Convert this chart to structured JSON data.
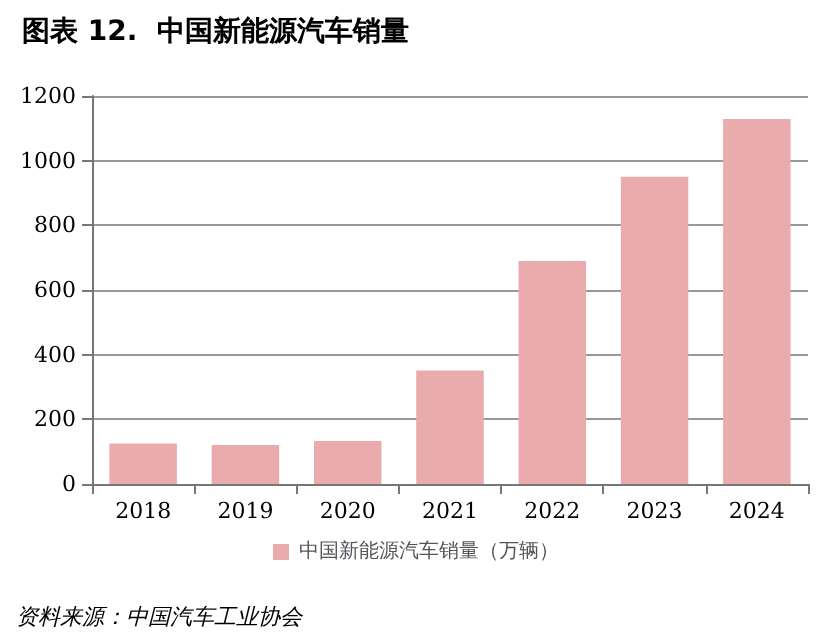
{
  "chart_data": {
    "type": "bar",
    "title": "图表 12.  中国新能源汽车销量",
    "categories": [
      "2018",
      "2019",
      "2020",
      "2021",
      "2022",
      "2023",
      "2024"
    ],
    "series": [
      {
        "name": "中国新能源汽车销量（万辆）",
        "color": "#e9abab",
        "values": [
          125,
          121,
          133,
          351,
          690,
          950,
          1129
        ]
      }
    ],
    "ylim": [
      0,
      1200
    ],
    "yticks": [
      0,
      200,
      400,
      600,
      800,
      1000,
      1200
    ],
    "grid": "y",
    "legend": "bottom",
    "annotations": [
      "资料来源：中国汽车工业协会"
    ]
  }
}
